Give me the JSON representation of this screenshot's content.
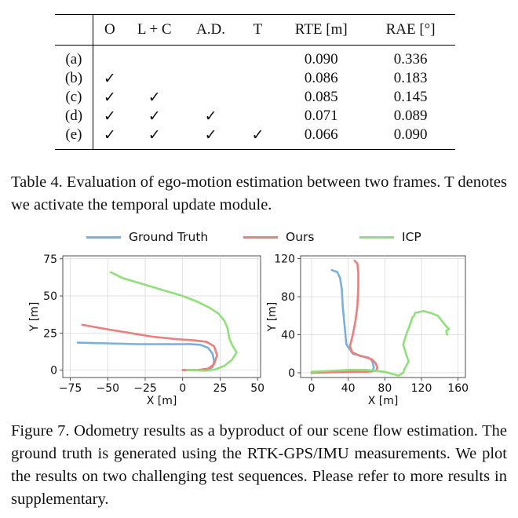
{
  "table": {
    "headers": [
      "",
      "O",
      "L + C",
      "A.D.",
      "T",
      "RTE [m]",
      "RAE [°]"
    ],
    "rows": [
      {
        "label": "(a)",
        "o": "",
        "lc": "",
        "ad": "",
        "t": "",
        "rte": "0.090",
        "rae": "0.336"
      },
      {
        "label": "(b)",
        "o": "✓",
        "lc": "",
        "ad": "",
        "t": "",
        "rte": "0.086",
        "rae": "0.183"
      },
      {
        "label": "(c)",
        "o": "✓",
        "lc": "✓",
        "ad": "",
        "t": "",
        "rte": "0.085",
        "rae": "0.145"
      },
      {
        "label": "(d)",
        "o": "✓",
        "lc": "✓",
        "ad": "✓",
        "t": "",
        "rte": "0.071",
        "rae": "0.089"
      },
      {
        "label": "(e)",
        "o": "✓",
        "lc": "✓",
        "ad": "✓",
        "t": "✓",
        "rte": "0.066",
        "rae": "0.090"
      }
    ],
    "caption": "Table 4. Evaluation of ego-motion estimation between two frames. T denotes we activate the temporal update module."
  },
  "figure": {
    "caption": "Figure 7. Odometry results as a byproduct of our scene flow estimation. The ground truth is generated using the RTK-GPS/IMU measurements. We plot the results on two challenging test sequences. Please refer to more results in supplementary.",
    "legend": [
      {
        "label": "Ground Truth",
        "color": "#7aaedb"
      },
      {
        "label": "Ours",
        "color": "#f07c7c"
      },
      {
        "label": "ICP",
        "color": "#8fe07a"
      }
    ]
  },
  "chart_data": [
    {
      "type": "line",
      "title": "",
      "xlabel": "X [m]",
      "ylabel": "Y [m]",
      "xlim": [
        -80,
        52
      ],
      "ylim": [
        -5,
        77
      ],
      "xticks": [
        "−75",
        "−50",
        "−25",
        "0",
        "25",
        "50"
      ],
      "xtick_values": [
        -75,
        -50,
        -25,
        0,
        25,
        50
      ],
      "yticks": [
        "0",
        "25",
        "50",
        "75"
      ],
      "ytick_values": [
        0,
        25,
        50,
        75
      ],
      "series": [
        {
          "name": "Ground Truth",
          "color": "#7aaedb",
          "x": [
            -70,
            -50,
            -30,
            -10,
            5,
            12,
            17,
            20,
            21,
            20,
            17,
            12,
            5,
            0
          ],
          "y": [
            18.5,
            18,
            17.5,
            17.5,
            17.5,
            17,
            15,
            11,
            6,
            2,
            0.5,
            0,
            0,
            0
          ]
        },
        {
          "name": "Ours",
          "color": "#f07c7c",
          "x": [
            -67,
            -50,
            -35,
            -20,
            -5,
            8,
            16,
            21,
            23,
            21,
            17,
            10,
            0
          ],
          "y": [
            30.5,
            27.5,
            25,
            22.5,
            21,
            20,
            19,
            16,
            10,
            4,
            1,
            0,
            0
          ]
        },
        {
          "name": "ICP",
          "color": "#8fe07a",
          "x": [
            -48,
            -40,
            -30,
            -20,
            -10,
            0,
            10,
            18,
            24,
            28,
            30,
            31,
            33,
            36,
            33,
            28,
            22,
            15,
            8,
            3
          ],
          "y": [
            66,
            62,
            59,
            56,
            53,
            50,
            46,
            42,
            38,
            33,
            28,
            22,
            17,
            12,
            7,
            3,
            0.5,
            -0.5,
            0,
            0
          ]
        }
      ]
    },
    {
      "type": "line",
      "title": "",
      "xlabel": "X [m]",
      "ylabel": "Y [m]",
      "xlim": [
        -12,
        168
      ],
      "ylim": [
        -5,
        123
      ],
      "xticks": [
        "0",
        "40",
        "80",
        "120",
        "160"
      ],
      "xtick_values": [
        0,
        40,
        80,
        120,
        160
      ],
      "yticks": [
        "0",
        "40",
        "80",
        "120"
      ],
      "ytick_values": [
        0,
        40,
        80,
        120
      ],
      "series": [
        {
          "name": "Ground Truth",
          "color": "#7aaedb",
          "x": [
            22,
            28,
            31,
            33,
            34,
            36,
            38,
            45,
            55,
            62,
            65,
            67,
            68,
            66,
            55,
            40,
            20,
            0
          ],
          "y": [
            108,
            106,
            100,
            88,
            70,
            50,
            30,
            20,
            17.5,
            16,
            14,
            10,
            5,
            2,
            1,
            1,
            1,
            0
          ]
        },
        {
          "name": "Ours",
          "color": "#f07c7c",
          "x": [
            47,
            50,
            51,
            51,
            50,
            48,
            45,
            42,
            44,
            52,
            60,
            66,
            70,
            72,
            70,
            60,
            45,
            25,
            0
          ],
          "y": [
            118,
            115,
            105,
            90,
            70,
            55,
            40,
            28,
            22,
            18,
            16,
            14,
            10,
            5,
            2,
            1,
            1,
            0.5,
            0
          ]
        },
        {
          "name": "ICP",
          "color": "#8fe07a",
          "x": [
            0,
            20,
            40,
            60,
            80,
            95,
            100,
            102,
            106,
            103,
            100,
            104,
            108,
            110,
            112,
            113,
            118,
            122,
            130,
            138,
            142,
            146,
            148,
            150,
            147,
            148
          ],
          "y": [
            1,
            2,
            3,
            3,
            1,
            -3,
            0,
            5,
            12,
            20,
            30,
            42,
            52,
            58,
            60,
            63,
            64,
            65,
            63,
            60,
            55,
            50,
            48,
            46,
            44,
            40
          ]
        }
      ]
    }
  ]
}
